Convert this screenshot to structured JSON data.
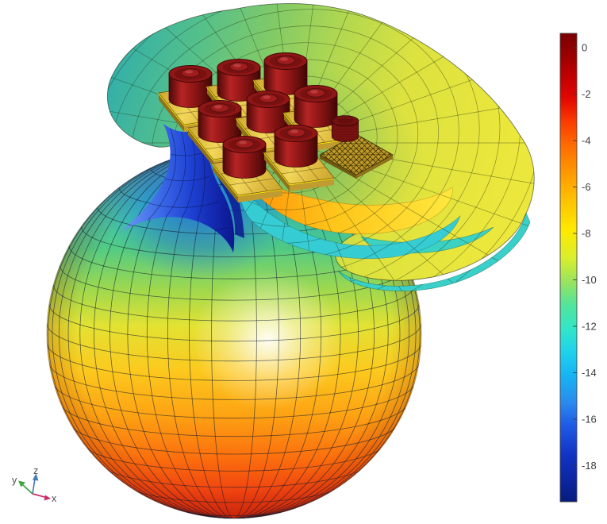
{
  "figure": {
    "background": "#ffffff",
    "palette": {
      "antenna_substrate_gold": "#e3c04a",
      "antenna_substrate_edge": "#ffe800",
      "antenna_element_dark_red": "#8f1616",
      "mesh_line": "#1a2430"
    }
  },
  "chart_data": {
    "type": "heatmap",
    "subtype": "3d-far-field-radiation-pattern-surface",
    "description": "3D far-field pattern of a 3x3 microstrip patch antenna array; surface color maps relative level per the colorbar, with a large spherical main lobe (red bottom to cyan top), a swirling yellow-green side lobe wrapping the array, and a deep blue null at the neck.",
    "title": "",
    "legend": "none",
    "colorbar": {
      "orientation": "vertical",
      "position": "right",
      "ticks": [
        0,
        -2,
        -4,
        -6,
        -8,
        -10,
        -12,
        -14,
        -16,
        -18
      ],
      "range_top_estimate": 0.6,
      "range_bottom_estimate": -19.5,
      "colormap": "rainbow",
      "stops": [
        {
          "offset": 0.0,
          "color": "#7a0000"
        },
        {
          "offset": 0.04,
          "color": "#940000"
        },
        {
          "offset": 0.09,
          "color": "#bf0000"
        },
        {
          "offset": 0.14,
          "color": "#e30800"
        },
        {
          "offset": 0.19,
          "color": "#fb3d00"
        },
        {
          "offset": 0.24,
          "color": "#ff6c00"
        },
        {
          "offset": 0.3,
          "color": "#ff9a00"
        },
        {
          "offset": 0.36,
          "color": "#ffc400"
        },
        {
          "offset": 0.42,
          "color": "#ffe900"
        },
        {
          "offset": 0.48,
          "color": "#d9ee2e"
        },
        {
          "offset": 0.53,
          "color": "#99e45e"
        },
        {
          "offset": 0.58,
          "color": "#52e49c"
        },
        {
          "offset": 0.63,
          "color": "#33e6c8"
        },
        {
          "offset": 0.68,
          "color": "#1fd2ec"
        },
        {
          "offset": 0.73,
          "color": "#17b4f2"
        },
        {
          "offset": 0.79,
          "color": "#2a89ee"
        },
        {
          "offset": 0.84,
          "color": "#1e58e4"
        },
        {
          "offset": 0.9,
          "color": "#1134c4"
        },
        {
          "offset": 0.95,
          "color": "#0c26a4"
        },
        {
          "offset": 1.0,
          "color": "#071c7e"
        }
      ]
    },
    "axis_triad": {
      "x_label": "x",
      "y_label": "y",
      "z_label": "z",
      "x_color": "#cc2b68",
      "y_color": "#3aa53f",
      "z_color": "#4a7ebb",
      "label_color": "#4f4f4f"
    },
    "scene": {
      "antenna_array_rows": 3,
      "antenna_array_cols": 3,
      "solid_elements": 8,
      "meshed_elements": 1
    }
  }
}
